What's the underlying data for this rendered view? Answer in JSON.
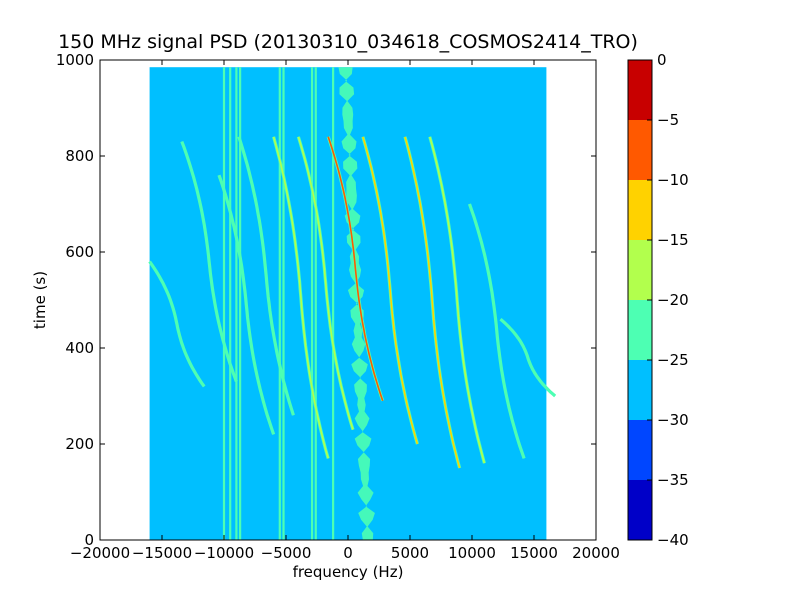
{
  "chart_data": {
    "type": "heatmap",
    "title": "150 MHz signal PSD (20130310_034618_COSMOS2414_TRO)",
    "xlabel": "frequency (Hz)",
    "ylabel": "time (s)",
    "xlim": [
      -20000,
      20000
    ],
    "ylim": [
      0,
      1000
    ],
    "x_ticks": [
      -20000,
      -15000,
      -10000,
      -5000,
      0,
      5000,
      10000,
      15000,
      20000
    ],
    "y_ticks": [
      0,
      200,
      400,
      600,
      800,
      1000
    ],
    "data_extent": {
      "freq": [
        -16000,
        16000
      ],
      "time": [
        0,
        985
      ]
    },
    "background_level": -27.5,
    "colorbar": {
      "levels": [
        -40,
        -35,
        -30,
        -25,
        -20,
        -15,
        -10,
        -5,
        0
      ],
      "ticks": [
        0,
        -5,
        -10,
        -15,
        -20,
        -25,
        -30,
        -35,
        -40
      ],
      "colors": [
        "#0000c8",
        "#0046ff",
        "#00bfff",
        "#4dffb3",
        "#b2ff4d",
        "#ffd200",
        "#ff5900",
        "#c80000"
      ]
    },
    "vertical_lines": [
      {
        "freq": -10000,
        "level": -20
      },
      {
        "freq": -9500,
        "level": -20
      },
      {
        "freq": -9000,
        "level": -22
      },
      {
        "freq": -8700,
        "level": -22
      },
      {
        "freq": -5500,
        "level": -22
      },
      {
        "freq": -5200,
        "level": -20
      },
      {
        "freq": -2900,
        "level": -22
      },
      {
        "freq": -2600,
        "level": -20
      },
      {
        "freq": -1200,
        "level": -22
      }
    ],
    "drifting_tracks": [
      {
        "center_freq": -13800,
        "start_time": 580,
        "end_time": 320,
        "level": -20
      },
      {
        "center_freq": -11200,
        "start_time": 830,
        "end_time": 330,
        "level": -20
      },
      {
        "center_freq": -8200,
        "start_time": 760,
        "end_time": 220,
        "level": -22
      },
      {
        "center_freq": -6600,
        "start_time": 840,
        "end_time": 260,
        "level": -20
      },
      {
        "center_freq": -3800,
        "start_time": 840,
        "end_time": 170,
        "level": -17
      },
      {
        "center_freq": -1800,
        "start_time": 840,
        "end_time": 230,
        "level": -18
      },
      {
        "center_freq": 600,
        "start_time": 840,
        "end_time": 290,
        "level": -8
      },
      {
        "center_freq": 3400,
        "start_time": 840,
        "end_time": 200,
        "level": -12
      },
      {
        "center_freq": 6800,
        "start_time": 840,
        "end_time": 150,
        "level": -14
      },
      {
        "center_freq": 8800,
        "start_time": 840,
        "end_time": 160,
        "level": -17
      },
      {
        "center_freq": 12000,
        "start_time": 700,
        "end_time": 170,
        "level": -20
      },
      {
        "center_freq": 14500,
        "start_time": 460,
        "end_time": 300,
        "level": -22
      }
    ]
  }
}
